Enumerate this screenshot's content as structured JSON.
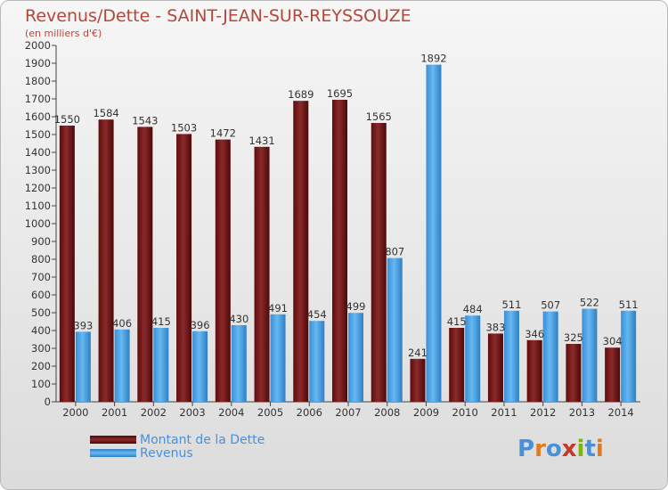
{
  "title": "Revenus/Dette - SAINT-JEAN-SUR-REYSSOUZE",
  "subtitle": "(en milliers d'€)",
  "logo_text": "Proxiti",
  "colors": {
    "dette": "#7a1a1a",
    "revenus": "#4aa3e6",
    "title": "#b2473a"
  },
  "chart_data": {
    "type": "bar",
    "categories": [
      "2000",
      "2001",
      "2002",
      "2003",
      "2004",
      "2005",
      "2006",
      "2007",
      "2008",
      "2009",
      "2010",
      "2011",
      "2012",
      "2013",
      "2014"
    ],
    "series": [
      {
        "name": "Montant de la Dette",
        "values": [
          1550,
          1584,
          1543,
          1503,
          1472,
          1431,
          1689,
          1695,
          1565,
          241,
          415,
          383,
          346,
          325,
          304
        ]
      },
      {
        "name": "Revenus",
        "values": [
          393,
          406,
          415,
          396,
          430,
          491,
          454,
          499,
          807,
          1892,
          484,
          511,
          507,
          522,
          511
        ]
      }
    ],
    "ylim": [
      0,
      2000
    ],
    "yticks": [
      0,
      100,
      200,
      300,
      400,
      500,
      600,
      700,
      800,
      900,
      1000,
      1100,
      1200,
      1300,
      1400,
      1500,
      1600,
      1700,
      1800,
      1900,
      2000
    ],
    "grid": false,
    "legend_position": "bottom-left"
  }
}
